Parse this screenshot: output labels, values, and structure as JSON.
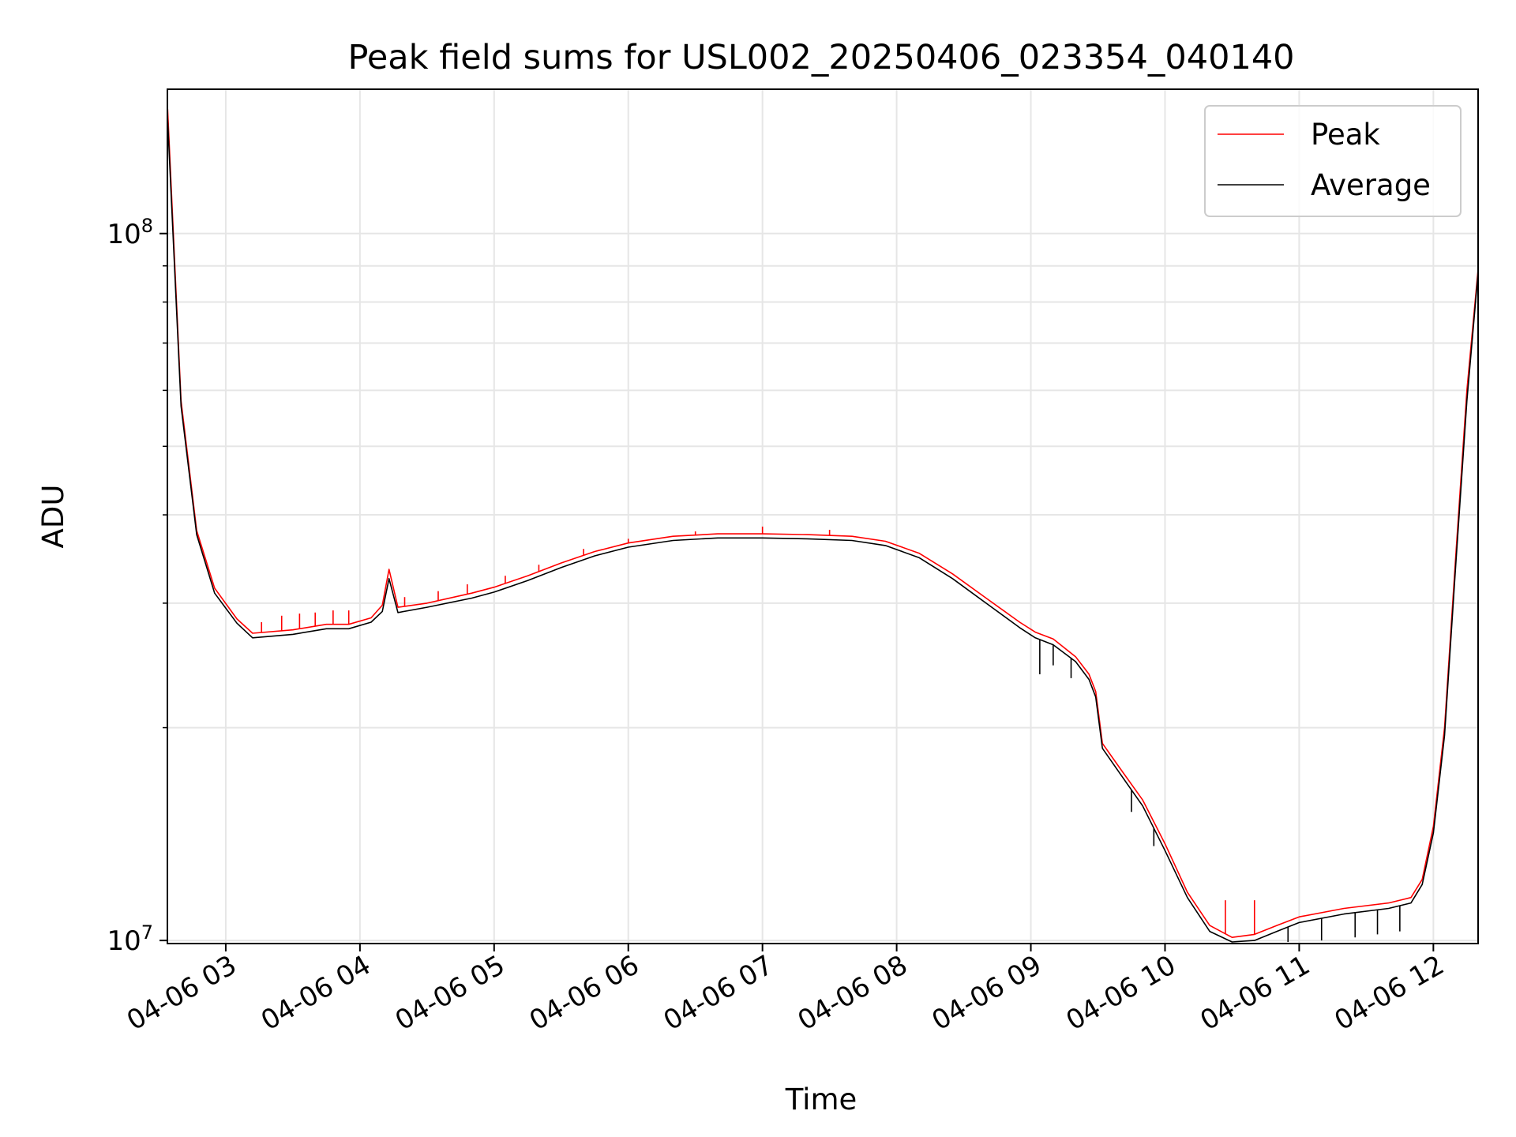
{
  "chart_data": {
    "type": "line",
    "title": "Peak field sums for USL002_20250406_023354_040140",
    "xlabel": "Time",
    "ylabel": "ADU",
    "x_scale": "time",
    "y_scale": "log",
    "xlim": [
      "2025-04-06T02:33:54",
      "2025-04-06T12:20:00"
    ],
    "ylim": [
      9900000,
      160000000
    ],
    "grid": true,
    "legend_position": "top-right",
    "x_ticks": [
      {
        "value": "2025-04-06T03:00",
        "label": "04-06 03"
      },
      {
        "value": "2025-04-06T04:00",
        "label": "04-06 04"
      },
      {
        "value": "2025-04-06T05:00",
        "label": "04-06 05"
      },
      {
        "value": "2025-04-06T06:00",
        "label": "04-06 06"
      },
      {
        "value": "2025-04-06T07:00",
        "label": "04-06 07"
      },
      {
        "value": "2025-04-06T08:00",
        "label": "04-06 08"
      },
      {
        "value": "2025-04-06T09:00",
        "label": "04-06 09"
      },
      {
        "value": "2025-04-06T10:00",
        "label": "04-06 10"
      },
      {
        "value": "2025-04-06T11:00",
        "label": "04-06 11"
      },
      {
        "value": "2025-04-06T12:00",
        "label": "04-06 12"
      }
    ],
    "y_major_ticks": [
      {
        "value": 10000000,
        "base": "10",
        "exp": "7"
      },
      {
        "value": 100000000,
        "base": "10",
        "exp": "8"
      }
    ],
    "y_minor_ticks": [
      20000000,
      30000000,
      40000000,
      50000000,
      60000000,
      70000000,
      80000000,
      90000000
    ],
    "series": [
      {
        "name": "Peak",
        "color": "#ff0000",
        "points": [
          [
            "2025-04-06T02:34",
            150000000
          ],
          [
            "2025-04-06T02:40",
            58000000
          ],
          [
            "2025-04-06T02:47",
            38000000
          ],
          [
            "2025-04-06T02:55",
            31500000
          ],
          [
            "2025-04-06T03:05",
            28500000
          ],
          [
            "2025-04-06T03:12",
            27200000
          ],
          [
            "2025-04-06T03:30",
            27500000
          ],
          [
            "2025-04-06T03:45",
            28000000
          ],
          [
            "2025-04-06T03:55",
            28000000
          ],
          [
            "2025-04-06T04:05",
            28600000
          ],
          [
            "2025-04-06T04:10",
            29800000
          ],
          [
            "2025-04-06T04:13",
            33500000
          ],
          [
            "2025-04-06T04:17",
            29600000
          ],
          [
            "2025-04-06T04:30",
            30000000
          ],
          [
            "2025-04-06T04:50",
            31000000
          ],
          [
            "2025-04-06T05:00",
            31600000
          ],
          [
            "2025-04-06T05:15",
            32800000
          ],
          [
            "2025-04-06T05:30",
            34200000
          ],
          [
            "2025-04-06T05:45",
            35500000
          ],
          [
            "2025-04-06T06:00",
            36500000
          ],
          [
            "2025-04-06T06:20",
            37300000
          ],
          [
            "2025-04-06T06:40",
            37600000
          ],
          [
            "2025-04-06T07:00",
            37600000
          ],
          [
            "2025-04-06T07:20",
            37500000
          ],
          [
            "2025-04-06T07:40",
            37300000
          ],
          [
            "2025-04-06T07:55",
            36700000
          ],
          [
            "2025-04-06T08:10",
            35300000
          ],
          [
            "2025-04-06T08:25",
            33000000
          ],
          [
            "2025-04-06T08:40",
            30500000
          ],
          [
            "2025-04-06T08:55",
            28200000
          ],
          [
            "2025-04-06T09:02",
            27300000
          ],
          [
            "2025-04-06T09:10",
            26700000
          ],
          [
            "2025-04-06T09:20",
            25200000
          ],
          [
            "2025-04-06T09:26",
            23800000
          ],
          [
            "2025-04-06T09:29",
            22500000
          ],
          [
            "2025-04-06T09:32",
            19000000
          ],
          [
            "2025-04-06T09:40",
            17500000
          ],
          [
            "2025-04-06T09:50",
            15800000
          ],
          [
            "2025-04-06T10:00",
            13700000
          ],
          [
            "2025-04-06T10:10",
            11700000
          ],
          [
            "2025-04-06T10:20",
            10500000
          ],
          [
            "2025-04-06T10:30",
            10100000
          ],
          [
            "2025-04-06T10:40",
            10200000
          ],
          [
            "2025-04-06T10:50",
            10500000
          ],
          [
            "2025-04-06T11:00",
            10800000
          ],
          [
            "2025-04-06T11:20",
            11100000
          ],
          [
            "2025-04-06T11:40",
            11300000
          ],
          [
            "2025-04-06T11:50",
            11500000
          ],
          [
            "2025-04-06T11:55",
            12200000
          ],
          [
            "2025-04-06T12:00",
            14500000
          ],
          [
            "2025-04-06T12:05",
            20000000
          ],
          [
            "2025-04-06T12:10",
            35000000
          ],
          [
            "2025-04-06T12:15",
            60000000
          ],
          [
            "2025-04-06T12:20",
            89000000
          ]
        ],
        "spikes": [
          [
            "2025-04-06T03:16",
            28200000
          ],
          [
            "2025-04-06T03:25",
            28800000
          ],
          [
            "2025-04-06T03:33",
            29000000
          ],
          [
            "2025-04-06T03:40",
            29100000
          ],
          [
            "2025-04-06T03:48",
            29300000
          ],
          [
            "2025-04-06T03:55",
            29300000
          ],
          [
            "2025-04-06T04:20",
            30600000
          ],
          [
            "2025-04-06T04:35",
            31200000
          ],
          [
            "2025-04-06T04:48",
            31900000
          ],
          [
            "2025-04-06T05:05",
            32800000
          ],
          [
            "2025-04-06T05:20",
            34000000
          ],
          [
            "2025-04-06T05:40",
            35800000
          ],
          [
            "2025-04-06T06:00",
            37000000
          ],
          [
            "2025-04-06T06:30",
            37900000
          ],
          [
            "2025-04-06T07:00",
            38500000
          ],
          [
            "2025-04-06T07:30",
            38100000
          ],
          [
            "2025-04-06T10:27",
            11400000
          ],
          [
            "2025-04-06T10:40",
            11400000
          ]
        ]
      },
      {
        "name": "Average",
        "color": "#000000",
        "points": [
          [
            "2025-04-06T02:34",
            145000000
          ],
          [
            "2025-04-06T02:40",
            57000000
          ],
          [
            "2025-04-06T02:47",
            37500000
          ],
          [
            "2025-04-06T02:55",
            31000000
          ],
          [
            "2025-04-06T03:05",
            28100000
          ],
          [
            "2025-04-06T03:12",
            26800000
          ],
          [
            "2025-04-06T03:30",
            27100000
          ],
          [
            "2025-04-06T03:45",
            27600000
          ],
          [
            "2025-04-06T03:55",
            27600000
          ],
          [
            "2025-04-06T04:05",
            28200000
          ],
          [
            "2025-04-06T04:10",
            29200000
          ],
          [
            "2025-04-06T04:13",
            32500000
          ],
          [
            "2025-04-06T04:17",
            29100000
          ],
          [
            "2025-04-06T04:30",
            29600000
          ],
          [
            "2025-04-06T04:50",
            30500000
          ],
          [
            "2025-04-06T05:00",
            31100000
          ],
          [
            "2025-04-06T05:15",
            32300000
          ],
          [
            "2025-04-06T05:30",
            33700000
          ],
          [
            "2025-04-06T05:45",
            35000000
          ],
          [
            "2025-04-06T06:00",
            36000000
          ],
          [
            "2025-04-06T06:20",
            36800000
          ],
          [
            "2025-04-06T06:40",
            37100000
          ],
          [
            "2025-04-06T07:00",
            37100000
          ],
          [
            "2025-04-06T07:20",
            37000000
          ],
          [
            "2025-04-06T07:40",
            36800000
          ],
          [
            "2025-04-06T07:55",
            36200000
          ],
          [
            "2025-04-06T08:10",
            34800000
          ],
          [
            "2025-04-06T08:25",
            32500000
          ],
          [
            "2025-04-06T08:40",
            30000000
          ],
          [
            "2025-04-06T08:55",
            27700000
          ],
          [
            "2025-04-06T09:02",
            26800000
          ],
          [
            "2025-04-06T09:10",
            26200000
          ],
          [
            "2025-04-06T09:20",
            24800000
          ],
          [
            "2025-04-06T09:26",
            23400000
          ],
          [
            "2025-04-06T09:29",
            22100000
          ],
          [
            "2025-04-06T09:32",
            18700000
          ],
          [
            "2025-04-06T09:40",
            17200000
          ],
          [
            "2025-04-06T09:50",
            15500000
          ],
          [
            "2025-04-06T10:00",
            13400000
          ],
          [
            "2025-04-06T10:10",
            11500000
          ],
          [
            "2025-04-06T10:20",
            10300000
          ],
          [
            "2025-04-06T10:30",
            9950000
          ],
          [
            "2025-04-06T10:40",
            10000000
          ],
          [
            "2025-04-06T10:50",
            10300000
          ],
          [
            "2025-04-06T11:00",
            10600000
          ],
          [
            "2025-04-06T11:20",
            10900000
          ],
          [
            "2025-04-06T11:40",
            11100000
          ],
          [
            "2025-04-06T11:50",
            11300000
          ],
          [
            "2025-04-06T11:55",
            12000000
          ],
          [
            "2025-04-06T12:00",
            14200000
          ],
          [
            "2025-04-06T12:05",
            19500000
          ],
          [
            "2025-04-06T12:10",
            34000000
          ],
          [
            "2025-04-06T12:15",
            58000000
          ],
          [
            "2025-04-06T12:20",
            88000000
          ]
        ],
        "dips": [
          [
            "2025-04-06T09:04",
            23800000
          ],
          [
            "2025-04-06T09:10",
            24500000
          ],
          [
            "2025-04-06T09:18",
            23500000
          ],
          [
            "2025-04-06T09:45",
            15200000
          ],
          [
            "2025-04-06T09:55",
            13600000
          ],
          [
            "2025-04-06T10:55",
            9950000
          ],
          [
            "2025-04-06T11:10",
            10000000
          ],
          [
            "2025-04-06T11:25",
            10100000
          ],
          [
            "2025-04-06T11:35",
            10200000
          ],
          [
            "2025-04-06T11:45",
            10300000
          ]
        ]
      }
    ]
  }
}
